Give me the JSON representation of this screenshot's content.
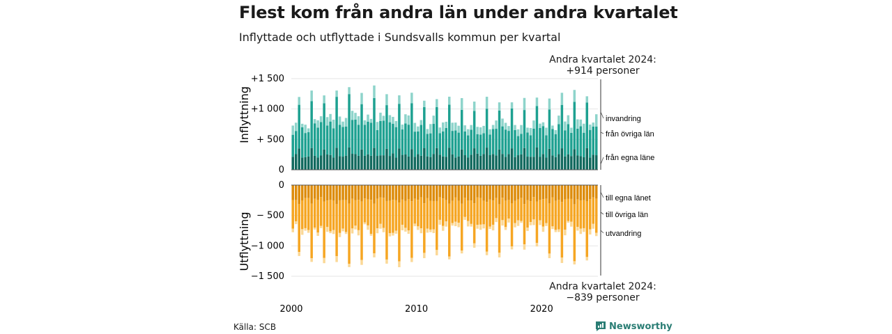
{
  "title": "Flest kom från andra län under andra kvartalet",
  "subtitle": "Inflyttade och utflyttade i Sundsvalls kommun per kvartal",
  "source": "Källa: SCB",
  "brand": "Newsworthy",
  "callouts": {
    "top_line1": "Andra kvartalet 2024:",
    "top_line2": "+914 personer",
    "bottom_line1": "Andra kvartalet 2024:",
    "bottom_line2": "−839 personer"
  },
  "colors": {
    "in_egna": "#11695e",
    "in_ovriga": "#1ea191",
    "in_invandring": "#8ed4cb",
    "out_egna": "#dd8c0c",
    "out_ovriga": "#f6a623",
    "out_utvandring": "#fbd896",
    "grid": "#e6e6e6"
  },
  "chart_data": {
    "type": "bar",
    "stacked": true,
    "x_axis": {
      "start_year": 2000,
      "end": "2024 Q2",
      "tick_labels": [
        "2000",
        "2010",
        "2020"
      ]
    },
    "panels": [
      {
        "ylabel": "Inflyttning",
        "ylim": [
          0,
          1500
        ],
        "tick_labels": [
          "0",
          "+ 500",
          "+1 000",
          "+1 500"
        ],
        "series": [
          {
            "name": "från egna läne",
            "peak_q3": 350,
            "base": 235
          },
          {
            "name": "från övriga län",
            "peak_q3": 740,
            "base": 470
          },
          {
            "name": "invandring",
            "peak_q3": 160,
            "base": 110
          }
        ],
        "last_quarter_total": 914
      },
      {
        "ylabel": "Utflyttning",
        "ylim": [
          -1500,
          0
        ],
        "tick_labels": [
          "0",
          "− 500",
          "−1 000",
          "−1 500"
        ],
        "series": [
          {
            "name": "till egna länet",
            "peak_q3": -290,
            "base": -230
          },
          {
            "name": "till övriga län",
            "peak_q3": -860,
            "base": -460
          },
          {
            "name": "utvandring",
            "peak_q3": -70,
            "base": -55
          }
        ],
        "last_quarter_total": -839
      }
    ],
    "grid": true,
    "legend_placement": "right, at end of series"
  }
}
